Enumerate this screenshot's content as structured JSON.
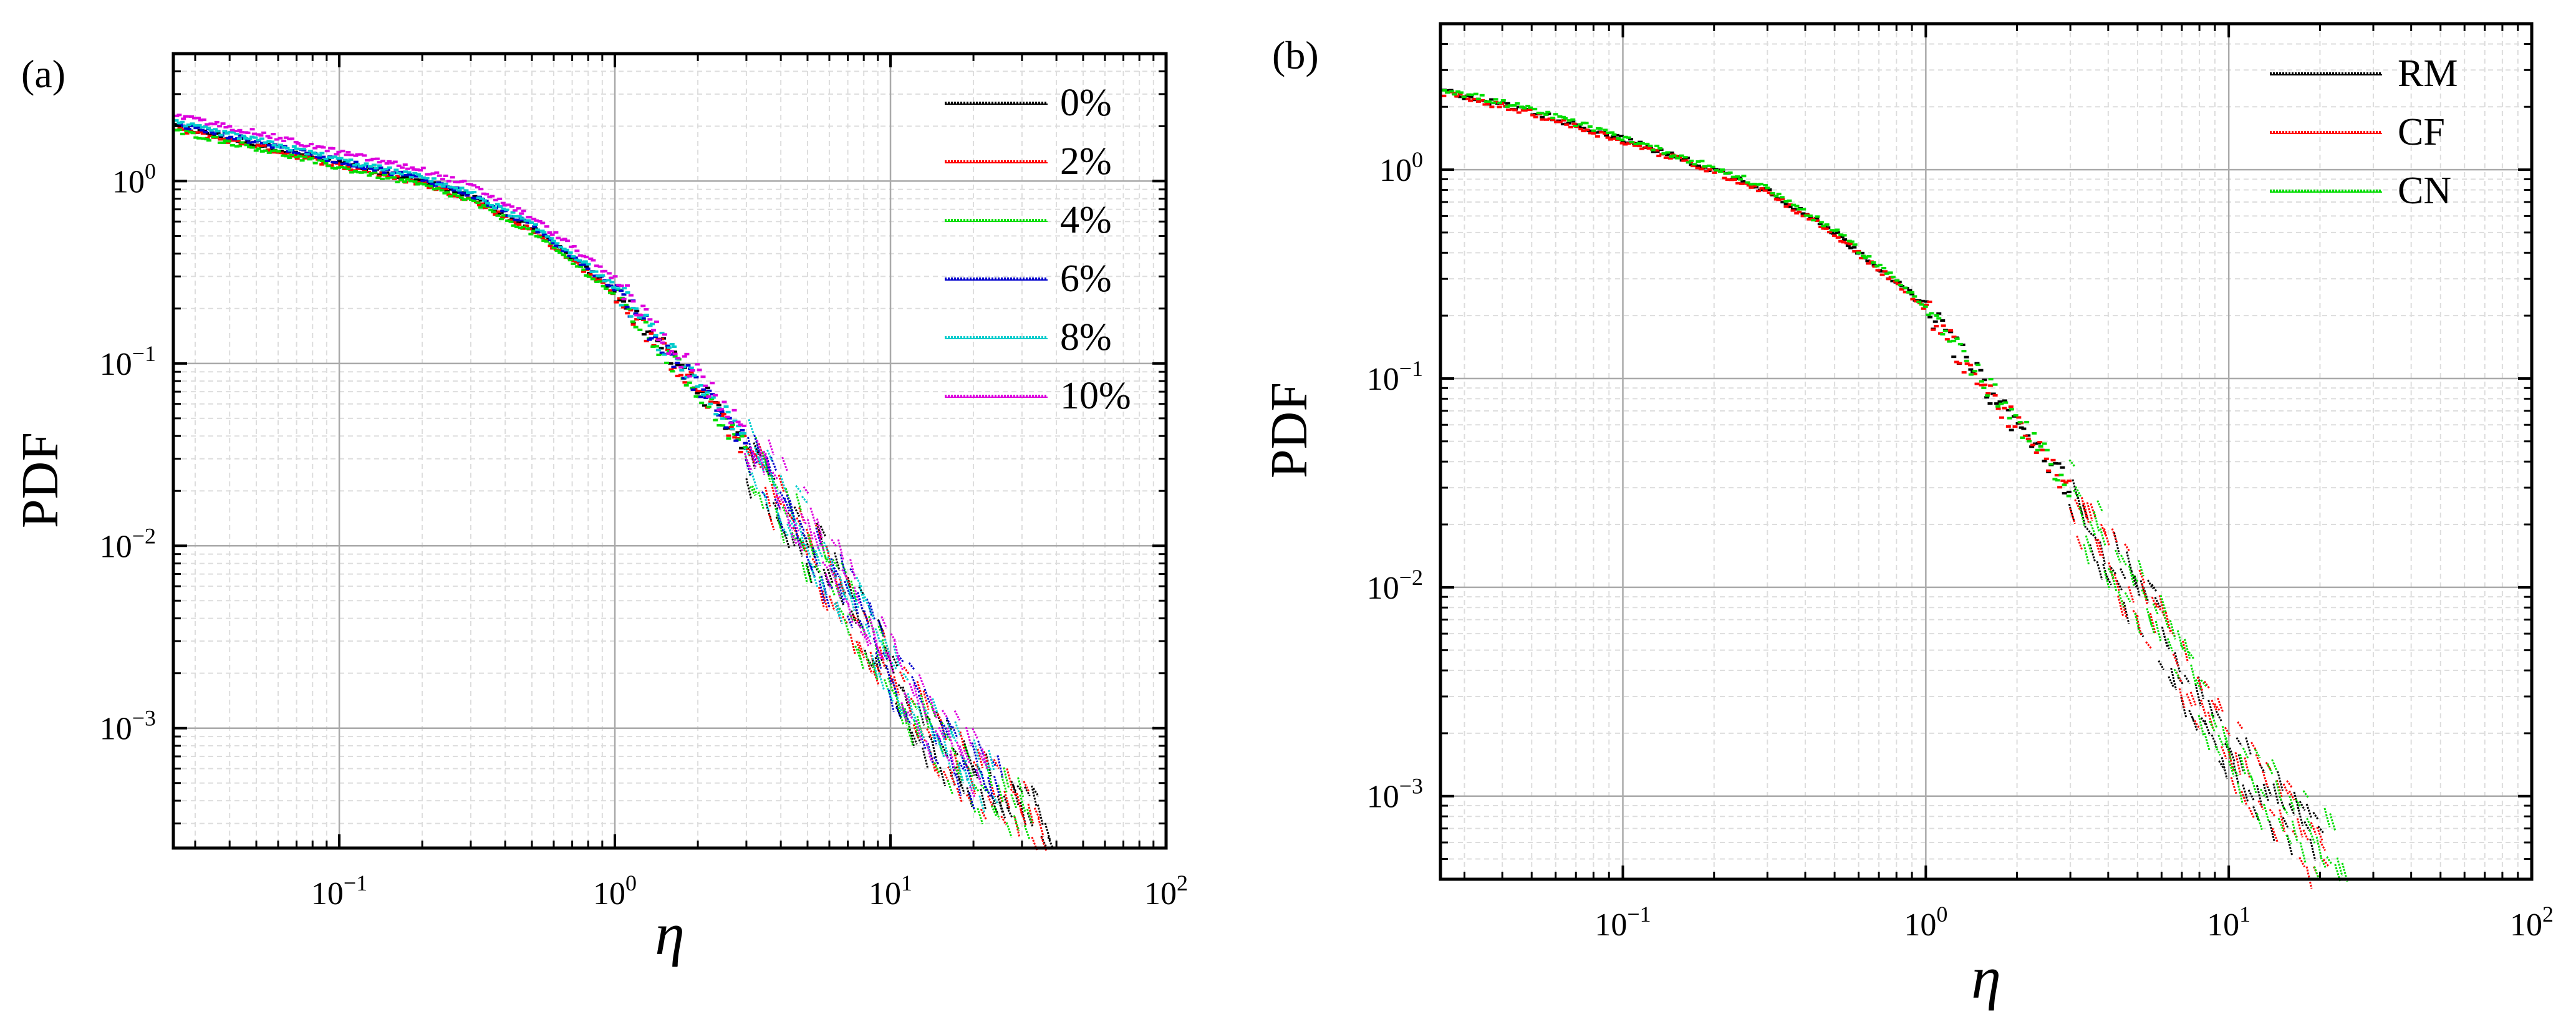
{
  "chart_data": [
    {
      "panel_label": "(a)",
      "type": "scatter",
      "xlabel": "η",
      "ylabel": "PDF",
      "xscale": "log",
      "yscale": "log",
      "xlim": [
        0.025,
        100
      ],
      "ylim": [
        0.00022,
        5.0
      ],
      "grid": true,
      "legend_position": "top-right",
      "x_ticks": [
        {
          "value": 0.1,
          "label": "10",
          "exp": "−1"
        },
        {
          "value": 1,
          "label": "10",
          "exp": "0"
        },
        {
          "value": 10,
          "label": "10",
          "exp": "1"
        },
        {
          "value": 100,
          "label": "10",
          "exp": "2"
        }
      ],
      "y_ticks": [
        {
          "value": 0.001,
          "label": "10",
          "exp": "−3"
        },
        {
          "value": 0.01,
          "label": "10",
          "exp": "−2"
        },
        {
          "value": 0.1,
          "label": "10",
          "exp": "−1"
        },
        {
          "value": 1,
          "label": "10",
          "exp": "0"
        }
      ],
      "series": [
        {
          "name": "0%",
          "color": "#000000",
          "scale": 1.0,
          "xmax": 38
        },
        {
          "name": "2%",
          "color": "#ff0000",
          "scale": 0.97,
          "xmax": 36
        },
        {
          "name": "4%",
          "color": "#00dd00",
          "scale": 0.95,
          "xmax": 32
        },
        {
          "name": "6%",
          "color": "#0000cc",
          "scale": 1.03,
          "xmax": 25
        },
        {
          "name": "8%",
          "color": "#00cccc",
          "scale": 1.05,
          "xmax": 24
        },
        {
          "name": "10%",
          "color": "#dd00dd",
          "scale": 1.15,
          "xmax": 22
        }
      ],
      "curve": {
        "x": [
          0.025,
          0.05,
          0.1,
          0.2,
          0.3,
          0.5,
          0.7,
          1.0,
          1.5,
          2.0,
          3.0,
          5.0,
          7.0,
          10.0,
          15.0,
          20.0,
          30.0,
          38.0
        ],
        "y": [
          2.0,
          1.6,
          1.25,
          1.0,
          0.82,
          0.55,
          0.38,
          0.25,
          0.12,
          0.075,
          0.035,
          0.012,
          0.0055,
          0.0022,
          0.0009,
          0.0006,
          0.0004,
          0.00026
        ]
      }
    },
    {
      "panel_label": "(b)",
      "type": "scatter",
      "xlabel": "η",
      "ylabel": "PDF",
      "xscale": "log",
      "yscale": "log",
      "xlim": [
        0.025,
        100
      ],
      "ylim": [
        0.0004,
        5.0
      ],
      "grid": true,
      "legend_position": "top-right",
      "x_ticks": [
        {
          "value": 0.1,
          "label": "10",
          "exp": "−1"
        },
        {
          "value": 1,
          "label": "10",
          "exp": "0"
        },
        {
          "value": 10,
          "label": "10",
          "exp": "1"
        },
        {
          "value": 100,
          "label": "10",
          "exp": "2"
        }
      ],
      "y_ticks": [
        {
          "value": 0.001,
          "label": "10",
          "exp": "−3"
        },
        {
          "value": 0.01,
          "label": "10",
          "exp": "−2"
        },
        {
          "value": 0.1,
          "label": "10",
          "exp": "−1"
        },
        {
          "value": 1,
          "label": "10",
          "exp": "0"
        }
      ],
      "series": [
        {
          "name": "RM",
          "color": "#000000",
          "scale": 1.0,
          "xmax": 20
        },
        {
          "name": "CF",
          "color": "#ff0000",
          "scale": 0.98,
          "xmax": 21
        },
        {
          "name": "CN",
          "color": "#00dd00",
          "scale": 1.02,
          "xmax": 24
        }
      ],
      "curve": {
        "x": [
          0.025,
          0.05,
          0.1,
          0.2,
          0.3,
          0.5,
          0.7,
          1.0,
          1.5,
          2.0,
          3.0,
          5.0,
          7.0,
          10.0,
          15.0,
          20.0,
          24.0
        ],
        "y": [
          2.4,
          1.9,
          1.4,
          1.0,
          0.8,
          0.5,
          0.34,
          0.22,
          0.1,
          0.06,
          0.03,
          0.01,
          0.0045,
          0.0018,
          0.0009,
          0.0006,
          0.00055
        ]
      }
    }
  ]
}
